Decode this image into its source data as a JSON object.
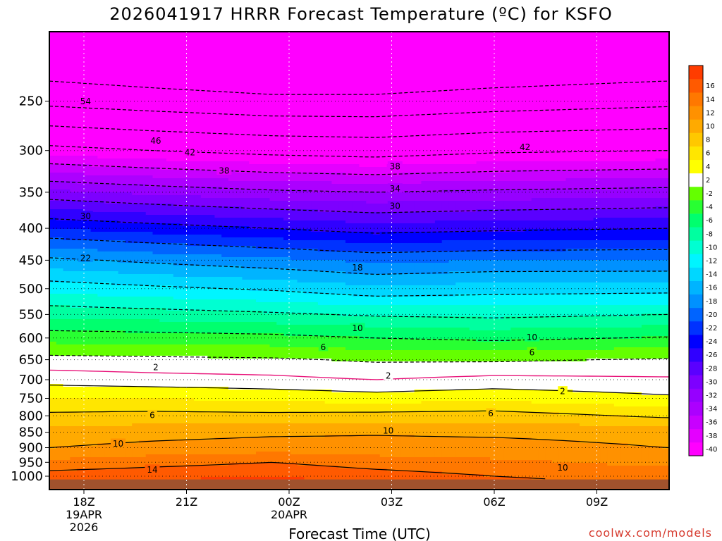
{
  "title": "2026041917 HRRR Forecast Temperature (ºC) for KSFO",
  "credit": "coolwx.com/models",
  "chart_data": {
    "type": "heatmap",
    "title": "2026041917 HRRR Forecast Temperature (ºC) for KSFO",
    "xlabel": "Forecast Time (UTC)",
    "ylabel": "",
    "y_scale": "log-pressure (hPa), inverted",
    "ylim": [
      1040,
      200
    ],
    "xlim_hours_after_18Z": [
      -1,
      17
    ],
    "y_ticks": [
      250,
      300,
      350,
      400,
      450,
      500,
      550,
      600,
      650,
      700,
      750,
      800,
      850,
      900,
      950,
      1000
    ],
    "x_ticks": [
      {
        "hour": 0,
        "label": "18Z",
        "sub1": "19APR",
        "sub2": "2026"
      },
      {
        "hour": 3,
        "label": "21Z",
        "sub1": "",
        "sub2": ""
      },
      {
        "hour": 6,
        "label": "00Z",
        "sub1": "20APR",
        "sub2": ""
      },
      {
        "hour": 9,
        "label": "03Z",
        "sub1": "",
        "sub2": ""
      },
      {
        "hour": 12,
        "label": "06Z",
        "sub1": "",
        "sub2": ""
      },
      {
        "hour": 15,
        "label": "09Z",
        "sub1": "",
        "sub2": ""
      }
    ],
    "grid": true,
    "surface_color": "#a0522d",
    "colorbar": {
      "position": "right",
      "bands": [
        {
          "lo": -42,
          "hi": -40,
          "color": "#ff00ff",
          "label": "-40"
        },
        {
          "lo": -40,
          "hi": -38,
          "color": "#e400ff",
          "label": "-38"
        },
        {
          "lo": -38,
          "hi": -36,
          "color": "#c800ff",
          "label": "-36"
        },
        {
          "lo": -36,
          "hi": -34,
          "color": "#ac00ff",
          "label": "-34"
        },
        {
          "lo": -34,
          "hi": -32,
          "color": "#9600ff",
          "label": "-32"
        },
        {
          "lo": -32,
          "hi": -30,
          "color": "#7d00ff",
          "label": "-30"
        },
        {
          "lo": -30,
          "hi": -28,
          "color": "#5a00ff",
          "label": "-28"
        },
        {
          "lo": -28,
          "hi": -26,
          "color": "#3000ff",
          "label": "-26"
        },
        {
          "lo": -26,
          "hi": -24,
          "color": "#0000ff",
          "label": "-24"
        },
        {
          "lo": -24,
          "hi": -22,
          "color": "#0032ff",
          "label": "-22"
        },
        {
          "lo": -22,
          "hi": -20,
          "color": "#0064ff",
          "label": "-20"
        },
        {
          "lo": -20,
          "hi": -18,
          "color": "#0091ff",
          "label": "-18"
        },
        {
          "lo": -18,
          "hi": -16,
          "color": "#00b4ff",
          "label": "-16"
        },
        {
          "lo": -16,
          "hi": -14,
          "color": "#00d7ff",
          "label": "-14"
        },
        {
          "lo": -14,
          "hi": -12,
          "color": "#00f5ff",
          "label": "-12"
        },
        {
          "lo": -12,
          "hi": -10,
          "color": "#00ffd2",
          "label": "-10"
        },
        {
          "lo": -10,
          "hi": -8,
          "color": "#00ffa0",
          "label": "-8"
        },
        {
          "lo": -8,
          "hi": -6,
          "color": "#00ff6e",
          "label": "-6"
        },
        {
          "lo": -6,
          "hi": -4,
          "color": "#28ff32",
          "label": "-4"
        },
        {
          "lo": -4,
          "hi": -2,
          "color": "#64ff00",
          "label": "-2"
        },
        {
          "lo": -2,
          "hi": 2,
          "color": "#ffffff",
          "label": "2"
        },
        {
          "lo": 2,
          "hi": 4,
          "color": "#ffff00",
          "label": "4"
        },
        {
          "lo": 4,
          "hi": 6,
          "color": "#ffe600",
          "label": "6"
        },
        {
          "lo": 6,
          "hi": 8,
          "color": "#ffc800",
          "label": "8"
        },
        {
          "lo": 8,
          "hi": 10,
          "color": "#ffaa00",
          "label": "10"
        },
        {
          "lo": 10,
          "hi": 12,
          "color": "#ff9100",
          "label": "12"
        },
        {
          "lo": 12,
          "hi": 14,
          "color": "#ff7800",
          "label": "14"
        },
        {
          "lo": 14,
          "hi": 16,
          "color": "#ff5a00",
          "label": "16"
        },
        {
          "lo": 16,
          "hi": 18,
          "color": "#ff3c00",
          "label": ""
        }
      ]
    },
    "temperature_profiles": [
      {
        "hour": -1,
        "levels": [
          [
            1000,
            15
          ],
          [
            950,
            12.5
          ],
          [
            900,
            10
          ],
          [
            850,
            8.7
          ],
          [
            800,
            6.5
          ],
          [
            750,
            4
          ],
          [
            700,
            1.2
          ],
          [
            650,
            -1.3
          ],
          [
            600,
            -4.8
          ],
          [
            550,
            -8.6
          ],
          [
            500,
            -12.7
          ],
          [
            450,
            -17.5
          ],
          [
            400,
            -24
          ],
          [
            350,
            -31.5
          ],
          [
            300,
            -41
          ],
          [
            250,
            -51
          ],
          [
            200,
            -60
          ]
        ]
      },
      {
        "hour": 2,
        "levels": [
          [
            1000,
            15.5
          ],
          [
            950,
            13.2
          ],
          [
            900,
            10.6
          ],
          [
            850,
            9.2
          ],
          [
            800,
            6.7
          ],
          [
            750,
            4
          ],
          [
            700,
            0.8
          ],
          [
            650,
            -1.5
          ],
          [
            600,
            -5
          ],
          [
            550,
            -9
          ],
          [
            500,
            -13.5
          ],
          [
            450,
            -18.5
          ],
          [
            400,
            -25
          ],
          [
            350,
            -32.5
          ],
          [
            300,
            -42
          ],
          [
            250,
            -52
          ],
          [
            200,
            -61
          ]
        ]
      },
      {
        "hour": 5.5,
        "levels": [
          [
            1000,
            16
          ],
          [
            950,
            14
          ],
          [
            900,
            11
          ],
          [
            850,
            9.6
          ],
          [
            800,
            6.6
          ],
          [
            750,
            3.5
          ],
          [
            700,
            0.5
          ],
          [
            650,
            -1.7
          ],
          [
            600,
            -5.3
          ],
          [
            550,
            -9.6
          ],
          [
            500,
            -14.3
          ],
          [
            450,
            -19.5
          ],
          [
            400,
            -26
          ],
          [
            350,
            -33.5
          ],
          [
            300,
            -43
          ],
          [
            250,
            -53
          ],
          [
            200,
            -62
          ]
        ]
      },
      {
        "hour": 8.5,
        "levels": [
          [
            1000,
            15
          ],
          [
            950,
            13
          ],
          [
            900,
            10.8
          ],
          [
            850,
            9.8
          ],
          [
            800,
            6.8
          ],
          [
            750,
            3
          ],
          [
            700,
            0
          ],
          [
            650,
            -2.3
          ],
          [
            600,
            -6
          ],
          [
            550,
            -10.3
          ],
          [
            500,
            -15.5
          ],
          [
            450,
            -20.5
          ],
          [
            400,
            -27
          ],
          [
            350,
            -34
          ],
          [
            300,
            -43.5
          ],
          [
            250,
            -53
          ],
          [
            200,
            -62
          ]
        ]
      },
      {
        "hour": 12,
        "levels": [
          [
            1000,
            14
          ],
          [
            950,
            12.4
          ],
          [
            900,
            10.8
          ],
          [
            850,
            9.6
          ],
          [
            800,
            7
          ],
          [
            750,
            3.5
          ],
          [
            700,
            0.6
          ],
          [
            650,
            -2.3
          ],
          [
            600,
            -6.5
          ],
          [
            550,
            -10.6
          ],
          [
            500,
            -15
          ],
          [
            450,
            -20
          ],
          [
            400,
            -26.5
          ],
          [
            350,
            -33.5
          ],
          [
            300,
            -42.5
          ],
          [
            250,
            -52
          ],
          [
            200,
            -61
          ]
        ]
      },
      {
        "hour": 17,
        "levels": [
          [
            1000,
            13
          ],
          [
            950,
            11.5
          ],
          [
            900,
            10
          ],
          [
            850,
            9.2
          ],
          [
            800,
            5.6
          ],
          [
            750,
            2.4
          ],
          [
            700,
            0.3
          ],
          [
            650,
            -1.8
          ],
          [
            600,
            -5.8
          ],
          [
            550,
            -10
          ],
          [
            500,
            -14.8
          ],
          [
            450,
            -20
          ],
          [
            400,
            -26
          ],
          [
            350,
            -33
          ],
          [
            300,
            -42
          ],
          [
            250,
            -51
          ],
          [
            200,
            -60
          ]
        ]
      }
    ],
    "contour_labels": [
      {
        "text": "54",
        "hour": 0.05,
        "pressure": 250
      },
      {
        "text": "46",
        "hour": 2.1,
        "pressure": 289
      },
      {
        "text": "42",
        "hour": 3.1,
        "pressure": 302
      },
      {
        "text": "38",
        "hour": 4.1,
        "pressure": 323
      },
      {
        "text": "42",
        "hour": 12.9,
        "pressure": 296
      },
      {
        "text": "38",
        "hour": 9.1,
        "pressure": 318
      },
      {
        "text": "34",
        "hour": 9.1,
        "pressure": 345
      },
      {
        "text": "30",
        "hour": 9.1,
        "pressure": 368
      },
      {
        "text": "30",
        "hour": 0.05,
        "pressure": 382
      },
      {
        "text": "22",
        "hour": 0.05,
        "pressure": 446
      },
      {
        "text": "18",
        "hour": 8.0,
        "pressure": 462
      },
      {
        "text": "10",
        "hour": 8.0,
        "pressure": 578
      },
      {
        "text": "10",
        "hour": 13.1,
        "pressure": 598
      },
      {
        "text": "6",
        "hour": 7.0,
        "pressure": 620
      },
      {
        "text": "6",
        "hour": 13.1,
        "pressure": 632
      },
      {
        "text": "2",
        "hour": 2.1,
        "pressure": 668
      },
      {
        "text": "2",
        "hour": 8.9,
        "pressure": 689
      },
      {
        "text": "2",
        "hour": 14.0,
        "pressure": 730
      },
      {
        "text": "6",
        "hour": 2.0,
        "pressure": 797
      },
      {
        "text": "6",
        "hour": 11.9,
        "pressure": 792
      },
      {
        "text": "10",
        "hour": 1.0,
        "pressure": 886
      },
      {
        "text": "10",
        "hour": 8.9,
        "pressure": 844
      },
      {
        "text": "10",
        "hour": 14.0,
        "pressure": 968
      },
      {
        "text": "14",
        "hour": 2.0,
        "pressure": 975
      }
    ]
  }
}
